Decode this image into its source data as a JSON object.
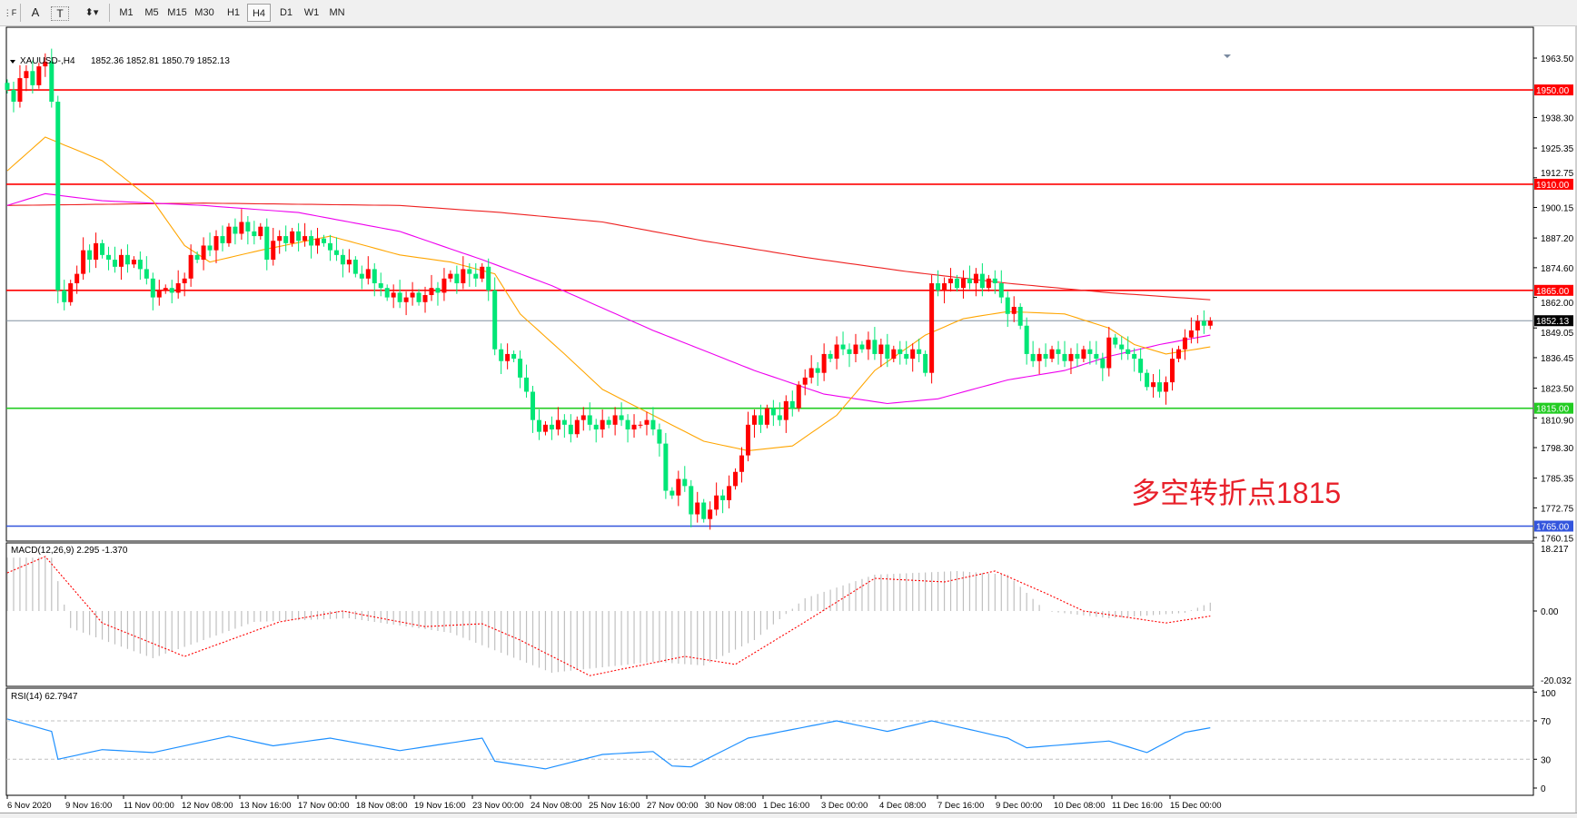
{
  "toolbar": {
    "tools": [
      {
        "name": "period-separator",
        "glyph": "⋮F"
      },
      {
        "name": "text",
        "glyph": "A"
      },
      {
        "name": "text-label",
        "glyph": "T"
      },
      {
        "name": "arrows",
        "glyph": "⬍▾"
      }
    ],
    "timeframes": [
      "M1",
      "M5",
      "M15",
      "M30",
      "H1",
      "H4",
      "D1",
      "W1",
      "MN"
    ],
    "active_timeframe": "H4"
  },
  "header": {
    "symbol": "XAUUSD-,H4",
    "ohlc": "1852.36 1852.81 1850.79 1852.13"
  },
  "annotation": "多空转折点1815",
  "colors": {
    "bull": "#ff0000",
    "bear": "#00e676",
    "ma_fast": "#ffa500",
    "ma_mid": "#ee00ee",
    "ma_slow": "#ee2222",
    "level_red": "#ff0000",
    "level_green": "#22cc22",
    "level_blue": "#3355dd",
    "macd_hist": "#c0c0c0",
    "macd_signal": "#ff0000",
    "rsi": "#1e90ff"
  },
  "chart_data": {
    "type": "candlestick",
    "price_axis": {
      "ticks": [
        "1963.50",
        "1938.30",
        "1925.35",
        "1912.75",
        "1900.15",
        "1887.20",
        "1874.60",
        "1862.00",
        "1849.05",
        "1836.45",
        "1823.50",
        "1810.90",
        "1798.30",
        "1785.35",
        "1772.75",
        "1760.15"
      ],
      "range": [
        1760.15,
        1963.5
      ]
    },
    "levels": [
      {
        "price": 1950.0,
        "label": "1950.00",
        "color": "#ff0000"
      },
      {
        "price": 1910.0,
        "label": "1910.00",
        "color": "#ff0000"
      },
      {
        "price": 1865.0,
        "label": "1865.00",
        "color": "#ff0000"
      },
      {
        "price": 1815.0,
        "label": "1815.00",
        "color": "#22cc22"
      },
      {
        "price": 1765.0,
        "label": "1765.00",
        "color": "#3355dd"
      }
    ],
    "current_price": {
      "price": 1852.13,
      "label": "1852.13"
    },
    "closes": [
      1950,
      1945,
      1955,
      1958,
      1952,
      1960,
      1962,
      1945,
      1865,
      1860,
      1868,
      1872,
      1882,
      1878,
      1885,
      1880,
      1878,
      1875,
      1880,
      1876,
      1878,
      1874,
      1870,
      1862,
      1865,
      1866,
      1864,
      1868,
      1870,
      1880,
      1878,
      1884,
      1882,
      1888,
      1885,
      1892,
      1889,
      1894,
      1890,
      1888,
      1892,
      1878,
      1886,
      1888,
      1885,
      1890,
      1886,
      1888,
      1884,
      1887,
      1885,
      1882,
      1880,
      1876,
      1878,
      1872,
      1870,
      1874,
      1868,
      1866,
      1862,
      1864,
      1860,
      1862,
      1864,
      1860,
      1863,
      1866,
      1864,
      1870,
      1872,
      1868,
      1874,
      1872,
      1870,
      1875,
      1865,
      1840,
      1835,
      1838,
      1836,
      1828,
      1822,
      1810,
      1805,
      1808,
      1806,
      1810,
      1808,
      1804,
      1810,
      1812,
      1808,
      1806,
      1810,
      1808,
      1812,
      1810,
      1806,
      1808,
      1808,
      1810,
      1806,
      1800,
      1780,
      1778,
      1785,
      1782,
      1770,
      1775,
      1768,
      1772,
      1778,
      1776,
      1782,
      1788,
      1795,
      1808,
      1812,
      1808,
      1815,
      1812,
      1810,
      1818,
      1815,
      1825,
      1828,
      1832,
      1830,
      1838,
      1836,
      1842,
      1840,
      1838,
      1842,
      1840,
      1844,
      1838,
      1842,
      1836,
      1840,
      1838,
      1836,
      1840,
      1838,
      1830,
      1868,
      1865,
      1868,
      1870,
      1866,
      1870,
      1868,
      1872,
      1866,
      1870,
      1868,
      1862,
      1855,
      1858,
      1850,
      1838,
      1835,
      1838,
      1836,
      1840,
      1838,
      1835,
      1838,
      1836,
      1840,
      1838,
      1836,
      1832,
      1845,
      1842,
      1840,
      1838,
      1836,
      1830,
      1824,
      1826,
      1822,
      1826,
      1836,
      1840,
      1845,
      1848,
      1852,
      1850,
      1852.13
    ],
    "ma_fast": [
      [
        0,
        1915.7
      ],
      [
        6,
        1930
      ],
      [
        15,
        1920
      ],
      [
        23,
        1903
      ],
      [
        28,
        1884
      ],
      [
        32,
        1877
      ],
      [
        40,
        1882
      ],
      [
        51,
        1888
      ],
      [
        62,
        1880
      ],
      [
        70,
        1877
      ],
      [
        77,
        1872
      ],
      [
        81,
        1855
      ],
      [
        88,
        1838
      ],
      [
        94,
        1823
      ],
      [
        102,
        1812
      ],
      [
        110,
        1801
      ],
      [
        117,
        1797
      ],
      [
        124,
        1799
      ],
      [
        131,
        1812
      ],
      [
        137,
        1831
      ],
      [
        145,
        1846
      ],
      [
        151,
        1853
      ],
      [
        158,
        1856
      ],
      [
        167,
        1855
      ],
      [
        174,
        1849
      ],
      [
        178,
        1842
      ],
      [
        183,
        1838
      ],
      [
        190,
        1841
      ]
    ],
    "ma_mid": [
      [
        0,
        1901
      ],
      [
        6,
        1906
      ],
      [
        15,
        1903
      ],
      [
        31,
        1901
      ],
      [
        46,
        1898
      ],
      [
        62,
        1890
      ],
      [
        75,
        1878
      ],
      [
        86,
        1867
      ],
      [
        102,
        1848
      ],
      [
        118,
        1831
      ],
      [
        129,
        1821
      ],
      [
        139,
        1817
      ],
      [
        147,
        1819
      ],
      [
        158,
        1827
      ],
      [
        167,
        1831
      ],
      [
        174,
        1837
      ],
      [
        182,
        1842
      ],
      [
        190,
        1846
      ]
    ],
    "ma_slow": [
      [
        0,
        1901
      ],
      [
        31,
        1902
      ],
      [
        62,
        1901
      ],
      [
        78,
        1898
      ],
      [
        94,
        1894
      ],
      [
        110,
        1886
      ],
      [
        126,
        1879
      ],
      [
        142,
        1873
      ],
      [
        158,
        1868
      ],
      [
        174,
        1864
      ],
      [
        190,
        1861
      ]
    ],
    "time_labels": [
      "6 Nov 2020",
      "9 Nov 16:00",
      "11 Nov 00:00",
      "12 Nov 08:00",
      "13 Nov 16:00",
      "17 Nov 00:00",
      "18 Nov 08:00",
      "19 Nov 16:00",
      "23 Nov 00:00",
      "24 Nov 08:00",
      "25 Nov 16:00",
      "27 Nov 00:00",
      "30 Nov 08:00",
      "1 Dec 16:00",
      "3 Dec 00:00",
      "4 Dec 08:00",
      "7 Dec 16:00",
      "9 Dec 00:00",
      "10 Dec 08:00",
      "11 Dec 16:00",
      "15 Dec 00:00"
    ],
    "macd": {
      "label": "MACD(12,26,9) 2.295 -1.370",
      "axis": [
        "18.217",
        "0.00",
        "-20.032"
      ],
      "range": [
        -20.032,
        18.217
      ],
      "histogram": [
        [
          0,
          14.7
        ],
        [
          7,
          14.7
        ],
        [
          10,
          -4.7
        ],
        [
          23,
          -13
        ],
        [
          39,
          -3
        ],
        [
          54,
          -2
        ],
        [
          70,
          -6
        ],
        [
          86,
          -17
        ],
        [
          102,
          -14
        ],
        [
          110,
          -15
        ],
        [
          118,
          -8
        ],
        [
          126,
          3.5
        ],
        [
          137,
          10
        ],
        [
          150,
          11
        ],
        [
          158,
          10
        ],
        [
          164,
          0
        ],
        [
          174,
          -2
        ],
        [
          186,
          -0.5
        ],
        [
          190,
          2.3
        ]
      ],
      "signal": [
        [
          0,
          10.5
        ],
        [
          6,
          15
        ],
        [
          15,
          -3.3
        ],
        [
          28,
          -12.5
        ],
        [
          43,
          -3
        ],
        [
          53,
          0
        ],
        [
          66,
          -4.3
        ],
        [
          75,
          -3.5
        ],
        [
          81,
          -8
        ],
        [
          92,
          -17.8
        ],
        [
          107,
          -12.5
        ],
        [
          115,
          -14.7
        ],
        [
          126,
          -3
        ],
        [
          137,
          9
        ],
        [
          148,
          8
        ],
        [
          156,
          11
        ],
        [
          164,
          4.9
        ],
        [
          170,
          0
        ],
        [
          183,
          -3.3
        ],
        [
          190,
          -1.4
        ]
      ]
    },
    "rsi": {
      "label": "RSI(14) 62.7947",
      "axis": [
        "100",
        "70",
        "30",
        "0"
      ],
      "levels": [
        70,
        30
      ],
      "values": [
        [
          0,
          72
        ],
        [
          7,
          59
        ],
        [
          8,
          30
        ],
        [
          15,
          40
        ],
        [
          23,
          37
        ],
        [
          35,
          54
        ],
        [
          42,
          44
        ],
        [
          51,
          52
        ],
        [
          62,
          39
        ],
        [
          75,
          52
        ],
        [
          77,
          28
        ],
        [
          85,
          20
        ],
        [
          94,
          35
        ],
        [
          102,
          38
        ],
        [
          105,
          23
        ],
        [
          108,
          22
        ],
        [
          117,
          52
        ],
        [
          131,
          70
        ],
        [
          139,
          59
        ],
        [
          146,
          70
        ],
        [
          158,
          52
        ],
        [
          161,
          42
        ],
        [
          174,
          49
        ],
        [
          180,
          37
        ],
        [
          186,
          58
        ],
        [
          190,
          62.8
        ]
      ]
    }
  }
}
